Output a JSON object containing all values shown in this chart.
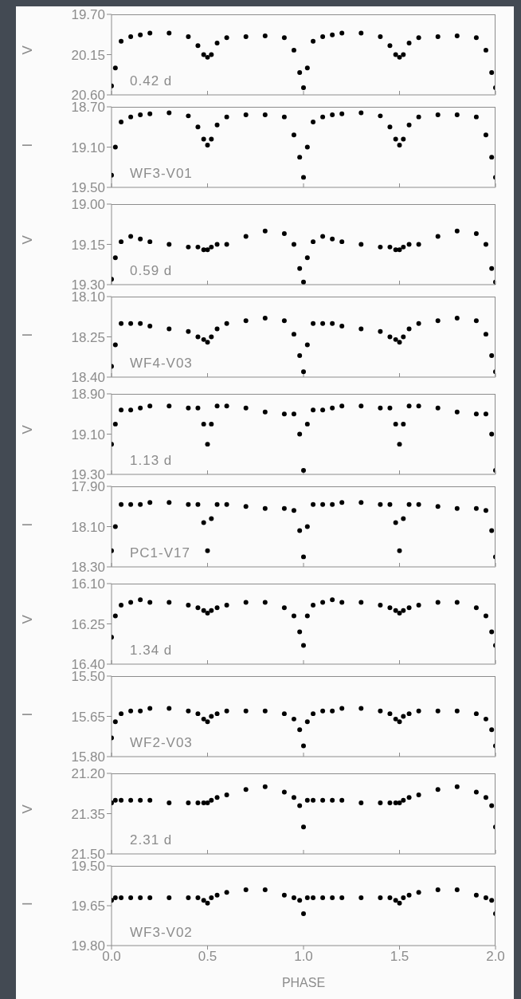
{
  "chart_data": [
    {
      "type": "scatter",
      "ylabel": "V",
      "annotations": [
        "0.42 d"
      ],
      "x": [
        0,
        0.02,
        0.05,
        0.1,
        0.15,
        0.2,
        0.3,
        0.4,
        0.45,
        0.48,
        0.5,
        0.52,
        0.55,
        0.6,
        0.7,
        0.8,
        0.9,
        0.95,
        0.98,
        1.0,
        1.02,
        1.05,
        1.1,
        1.15,
        1.2,
        1.3,
        1.4,
        1.45,
        1.48,
        1.5,
        1.52,
        1.55,
        1.6,
        1.7,
        1.8,
        1.9,
        1.95,
        1.98,
        2.0
      ],
      "values": [
        20.5,
        20.3,
        20.0,
        19.95,
        19.93,
        19.91,
        19.91,
        19.95,
        20.05,
        20.15,
        20.18,
        20.15,
        20.02,
        19.96,
        19.95,
        19.94,
        19.96,
        20.1,
        20.35,
        20.52,
        20.3,
        20.0,
        19.95,
        19.93,
        19.91,
        19.91,
        19.95,
        20.05,
        20.15,
        20.18,
        20.15,
        20.02,
        19.96,
        19.95,
        19.94,
        19.96,
        20.1,
        20.35,
        20.52
      ],
      "color": "#000000",
      "marker": "circle",
      "xlim": [
        0,
        2
      ],
      "xticks": [
        0,
        0.5,
        1,
        1.5,
        2
      ],
      "ylim": [
        20.6,
        19.7
      ],
      "yticks": [
        {
          "value": 19.7,
          "label": "19.70"
        },
        {
          "value": 20.15,
          "label": "20.15"
        },
        {
          "value": 20.6,
          "label": "20.60"
        }
      ],
      "tick_labels": "y"
    },
    {
      "type": "scatter",
      "ylabel": "I",
      "annotations": [
        "WF3-V01"
      ],
      "x": [
        0,
        0.02,
        0.05,
        0.1,
        0.15,
        0.2,
        0.3,
        0.4,
        0.45,
        0.48,
        0.5,
        0.52,
        0.55,
        0.6,
        0.7,
        0.8,
        0.9,
        0.95,
        0.98,
        1.0,
        1.02,
        1.05,
        1.1,
        1.15,
        1.2,
        1.3,
        1.4,
        1.45,
        1.48,
        1.5,
        1.52,
        1.55,
        1.6,
        1.7,
        1.8,
        1.9,
        1.95,
        1.98,
        2.0
      ],
      "values": [
        19.38,
        19.1,
        18.85,
        18.8,
        18.78,
        18.77,
        18.76,
        18.79,
        18.9,
        19.02,
        19.08,
        19.02,
        18.88,
        18.8,
        18.78,
        18.78,
        18.8,
        18.98,
        19.2,
        19.4,
        19.1,
        18.85,
        18.8,
        18.78,
        18.77,
        18.76,
        18.79,
        18.9,
        19.02,
        19.08,
        19.02,
        18.88,
        18.8,
        18.78,
        18.78,
        18.8,
        18.98,
        19.2,
        19.4
      ],
      "color": "#000000",
      "marker": "circle",
      "xlim": [
        0,
        2
      ],
      "xticks": [
        0,
        0.5,
        1,
        1.5,
        2
      ],
      "ylim": [
        19.5,
        18.7
      ],
      "yticks": [
        {
          "value": 18.7,
          "label": "18.70"
        },
        {
          "value": 19.1,
          "label": "19.10"
        },
        {
          "value": 19.5,
          "label": "19.50"
        }
      ],
      "tick_labels": "y"
    },
    {
      "type": "scatter",
      "ylabel": "V",
      "annotations": [
        "0.59 d"
      ],
      "x": [
        0,
        0.02,
        0.05,
        0.1,
        0.15,
        0.2,
        0.3,
        0.4,
        0.45,
        0.48,
        0.5,
        0.52,
        0.55,
        0.6,
        0.7,
        0.8,
        0.9,
        0.95,
        0.98,
        1.0,
        1.02,
        1.05,
        1.1,
        1.15,
        1.2,
        1.3,
        1.4,
        1.45,
        1.48,
        1.5,
        1.52,
        1.55,
        1.6,
        1.7,
        1.8,
        1.9,
        1.95,
        1.98,
        2.0
      ],
      "values": [
        19.28,
        19.2,
        19.14,
        19.12,
        19.13,
        19.14,
        19.15,
        19.16,
        19.16,
        19.17,
        19.17,
        19.16,
        19.15,
        19.15,
        19.12,
        19.1,
        19.11,
        19.15,
        19.24,
        19.29,
        19.2,
        19.14,
        19.12,
        19.13,
        19.14,
        19.15,
        19.16,
        19.16,
        19.17,
        19.17,
        19.16,
        19.15,
        19.15,
        19.12,
        19.1,
        19.11,
        19.15,
        19.24,
        19.29
      ],
      "color": "#000000",
      "marker": "circle",
      "xlim": [
        0,
        2
      ],
      "xticks": [
        0,
        0.5,
        1,
        1.5,
        2
      ],
      "ylim": [
        19.3,
        19.0
      ],
      "yticks": [
        {
          "value": 19.0,
          "label": "19.00"
        },
        {
          "value": 19.15,
          "label": "19.15"
        },
        {
          "value": 19.3,
          "label": "19.30"
        }
      ],
      "tick_labels": "y"
    },
    {
      "type": "scatter",
      "ylabel": "I",
      "annotations": [
        "WF4-V03"
      ],
      "x": [
        0,
        0.02,
        0.05,
        0.1,
        0.15,
        0.2,
        0.3,
        0.4,
        0.45,
        0.48,
        0.5,
        0.52,
        0.55,
        0.6,
        0.7,
        0.8,
        0.9,
        0.95,
        0.98,
        1.0,
        1.02,
        1.05,
        1.1,
        1.15,
        1.2,
        1.3,
        1.4,
        1.45,
        1.48,
        1.5,
        1.52,
        1.55,
        1.6,
        1.7,
        1.8,
        1.9,
        1.95,
        1.98,
        2.0
      ],
      "values": [
        18.36,
        18.28,
        18.2,
        18.2,
        18.2,
        18.21,
        18.22,
        18.23,
        18.25,
        18.26,
        18.27,
        18.25,
        18.22,
        18.2,
        18.19,
        18.18,
        18.19,
        18.24,
        18.32,
        18.38,
        18.28,
        18.2,
        18.2,
        18.2,
        18.21,
        18.22,
        18.23,
        18.25,
        18.26,
        18.27,
        18.25,
        18.22,
        18.2,
        18.19,
        18.18,
        18.19,
        18.24,
        18.32,
        18.38
      ],
      "color": "#000000",
      "marker": "circle",
      "xlim": [
        0,
        2
      ],
      "xticks": [
        0,
        0.5,
        1,
        1.5,
        2
      ],
      "ylim": [
        18.4,
        18.1
      ],
      "yticks": [
        {
          "value": 18.1,
          "label": "18.10"
        },
        {
          "value": 18.25,
          "label": "18.25"
        },
        {
          "value": 18.4,
          "label": "18.40"
        }
      ],
      "tick_labels": "y"
    },
    {
      "type": "scatter",
      "ylabel": "V",
      "annotations": [
        "1.13 d"
      ],
      "x": [
        0,
        0.02,
        0.05,
        0.1,
        0.15,
        0.2,
        0.3,
        0.4,
        0.45,
        0.48,
        0.5,
        0.52,
        0.55,
        0.6,
        0.7,
        0.8,
        0.9,
        0.95,
        0.98,
        1.0,
        1.02,
        1.05,
        1.1,
        1.15,
        1.2,
        1.3,
        1.4,
        1.45,
        1.48,
        1.5,
        1.52,
        1.55,
        1.6,
        1.7,
        1.8,
        1.9,
        1.95,
        1.98,
        2.0
      ],
      "values": [
        19.15,
        19.05,
        18.98,
        18.98,
        18.97,
        18.96,
        18.96,
        18.97,
        18.97,
        19.05,
        19.15,
        19.05,
        18.96,
        18.96,
        18.97,
        18.99,
        19.0,
        19.0,
        19.1,
        19.28,
        19.05,
        18.98,
        18.98,
        18.97,
        18.96,
        18.96,
        18.97,
        18.97,
        19.05,
        19.15,
        19.05,
        18.96,
        18.96,
        18.97,
        18.99,
        19.0,
        19.0,
        19.1,
        19.28
      ],
      "color": "#000000",
      "marker": "circle",
      "xlim": [
        0,
        2
      ],
      "xticks": [
        0,
        0.5,
        1,
        1.5,
        2
      ],
      "ylim": [
        19.3,
        18.9
      ],
      "yticks": [
        {
          "value": 18.9,
          "label": "18.90"
        },
        {
          "value": 19.1,
          "label": "19.10"
        },
        {
          "value": 19.3,
          "label": "19.30"
        }
      ],
      "tick_labels": "y"
    },
    {
      "type": "scatter",
      "ylabel": "I",
      "annotations": [
        "PC1-V17"
      ],
      "x": [
        0,
        0.02,
        0.05,
        0.1,
        0.15,
        0.2,
        0.3,
        0.4,
        0.45,
        0.48,
        0.5,
        0.52,
        0.55,
        0.6,
        0.7,
        0.8,
        0.9,
        0.95,
        0.98,
        1.0,
        1.02,
        1.05,
        1.1,
        1.15,
        1.2,
        1.3,
        1.4,
        1.45,
        1.48,
        1.5,
        1.52,
        1.55,
        1.6,
        1.7,
        1.8,
        1.9,
        1.95,
        1.98,
        2.0
      ],
      "values": [
        18.22,
        18.1,
        17.99,
        17.99,
        17.99,
        17.98,
        17.98,
        17.99,
        17.99,
        18.08,
        18.22,
        18.06,
        17.99,
        17.99,
        18.0,
        18.01,
        18.01,
        18.02,
        18.12,
        18.25,
        18.1,
        17.99,
        17.99,
        17.99,
        17.98,
        17.98,
        17.99,
        17.99,
        18.08,
        18.22,
        18.06,
        17.99,
        17.99,
        18.0,
        18.01,
        18.01,
        18.02,
        18.12,
        18.25
      ],
      "color": "#000000",
      "marker": "circle",
      "xlim": [
        0,
        2
      ],
      "xticks": [
        0,
        0.5,
        1,
        1.5,
        2
      ],
      "ylim": [
        18.3,
        17.9
      ],
      "yticks": [
        {
          "value": 17.9,
          "label": "17.90"
        },
        {
          "value": 18.1,
          "label": "18.10"
        },
        {
          "value": 18.3,
          "label": "18.30"
        }
      ],
      "tick_labels": "y"
    },
    {
      "type": "scatter",
      "ylabel": "V",
      "annotations": [
        "1.34 d"
      ],
      "x": [
        0,
        0.02,
        0.05,
        0.1,
        0.15,
        0.2,
        0.3,
        0.4,
        0.45,
        0.48,
        0.5,
        0.52,
        0.55,
        0.6,
        0.7,
        0.8,
        0.9,
        0.95,
        0.98,
        1.0,
        1.02,
        1.05,
        1.1,
        1.15,
        1.2,
        1.3,
        1.4,
        1.45,
        1.48,
        1.5,
        1.52,
        1.55,
        1.6,
        1.7,
        1.8,
        1.9,
        1.95,
        1.98,
        2.0
      ],
      "values": [
        16.3,
        16.22,
        16.18,
        16.17,
        16.16,
        16.17,
        16.17,
        16.18,
        16.19,
        16.2,
        16.21,
        16.2,
        16.19,
        16.18,
        16.17,
        16.17,
        16.19,
        16.22,
        16.28,
        16.33,
        16.22,
        16.18,
        16.17,
        16.16,
        16.17,
        16.17,
        16.18,
        16.19,
        16.2,
        16.21,
        16.2,
        16.19,
        16.18,
        16.17,
        16.17,
        16.19,
        16.22,
        16.28,
        16.33
      ],
      "color": "#000000",
      "marker": "circle",
      "xlim": [
        0,
        2
      ],
      "xticks": [
        0,
        0.5,
        1,
        1.5,
        2
      ],
      "ylim": [
        16.4,
        16.1
      ],
      "yticks": [
        {
          "value": 16.1,
          "label": "16.10"
        },
        {
          "value": 16.25,
          "label": "16.25"
        },
        {
          "value": 16.4,
          "label": "16.40"
        }
      ],
      "tick_labels": "y"
    },
    {
      "type": "scatter",
      "ylabel": "I",
      "annotations": [
        "WF2-V03"
      ],
      "x": [
        0,
        0.02,
        0.05,
        0.1,
        0.15,
        0.2,
        0.3,
        0.4,
        0.45,
        0.48,
        0.5,
        0.52,
        0.55,
        0.6,
        0.7,
        0.8,
        0.9,
        0.95,
        0.98,
        1.0,
        1.02,
        1.05,
        1.1,
        1.15,
        1.2,
        1.3,
        1.4,
        1.45,
        1.48,
        1.5,
        1.52,
        1.55,
        1.6,
        1.7,
        1.8,
        1.9,
        1.95,
        1.98,
        2.0
      ],
      "values": [
        15.73,
        15.67,
        15.64,
        15.63,
        15.63,
        15.62,
        15.62,
        15.63,
        15.64,
        15.66,
        15.67,
        15.65,
        15.64,
        15.63,
        15.63,
        15.63,
        15.64,
        15.66,
        15.7,
        15.76,
        15.67,
        15.64,
        15.63,
        15.63,
        15.62,
        15.62,
        15.63,
        15.64,
        15.66,
        15.67,
        15.65,
        15.64,
        15.63,
        15.63,
        15.63,
        15.64,
        15.66,
        15.7,
        15.76
      ],
      "color": "#000000",
      "marker": "circle",
      "xlim": [
        0,
        2
      ],
      "xticks": [
        0,
        0.5,
        1,
        1.5,
        2
      ],
      "ylim": [
        15.8,
        15.5
      ],
      "yticks": [
        {
          "value": 15.5,
          "label": "15.50"
        },
        {
          "value": 15.65,
          "label": "15.65"
        },
        {
          "value": 15.8,
          "label": "15.80"
        }
      ],
      "tick_labels": "y"
    },
    {
      "type": "scatter",
      "ylabel": "V",
      "annotations": [
        "2.31 d"
      ],
      "x": [
        0,
        0.02,
        0.05,
        0.1,
        0.15,
        0.2,
        0.3,
        0.4,
        0.45,
        0.48,
        0.5,
        0.52,
        0.55,
        0.6,
        0.7,
        0.8,
        0.9,
        0.95,
        0.98,
        1.0,
        1.02,
        1.05,
        1.1,
        1.15,
        1.2,
        1.3,
        1.4,
        1.45,
        1.48,
        1.5,
        1.52,
        1.55,
        1.6,
        1.7,
        1.8,
        1.9,
        1.95,
        1.98,
        2.0
      ],
      "values": [
        21.31,
        21.3,
        21.3,
        21.3,
        21.3,
        21.3,
        21.31,
        21.31,
        21.31,
        21.31,
        21.31,
        21.3,
        21.29,
        21.28,
        21.26,
        21.25,
        21.27,
        21.29,
        21.32,
        21.4,
        21.3,
        21.3,
        21.3,
        21.3,
        21.3,
        21.31,
        21.31,
        21.31,
        21.31,
        21.31,
        21.3,
        21.29,
        21.28,
        21.26,
        21.25,
        21.27,
        21.29,
        21.32,
        21.4
      ],
      "color": "#000000",
      "marker": "circle",
      "xlim": [
        0,
        2
      ],
      "xticks": [
        0,
        0.5,
        1,
        1.5,
        2
      ],
      "ylim": [
        21.5,
        21.2
      ],
      "yticks": [
        {
          "value": 21.2,
          "label": "21.20"
        },
        {
          "value": 21.35,
          "label": "21.35"
        },
        {
          "value": 21.5,
          "label": "21.50"
        }
      ],
      "tick_labels": "y"
    },
    {
      "type": "scatter",
      "ylabel": "I",
      "xlabel": "PHASE",
      "annotations": [
        "WF3-V02"
      ],
      "x": [
        0,
        0.02,
        0.05,
        0.1,
        0.15,
        0.2,
        0.3,
        0.4,
        0.45,
        0.48,
        0.5,
        0.52,
        0.55,
        0.6,
        0.7,
        0.8,
        0.9,
        0.95,
        0.98,
        1.0,
        1.02,
        1.05,
        1.1,
        1.15,
        1.2,
        1.3,
        1.4,
        1.45,
        1.48,
        1.5,
        1.52,
        1.55,
        1.6,
        1.7,
        1.8,
        1.9,
        1.95,
        1.98,
        2.0
      ],
      "values": [
        19.63,
        19.62,
        19.62,
        19.62,
        19.62,
        19.62,
        19.62,
        19.62,
        19.62,
        19.63,
        19.64,
        19.62,
        19.61,
        19.6,
        19.59,
        19.59,
        19.61,
        19.62,
        19.63,
        19.68,
        19.62,
        19.62,
        19.62,
        19.62,
        19.62,
        19.62,
        19.62,
        19.62,
        19.63,
        19.64,
        19.62,
        19.61,
        19.6,
        19.59,
        19.59,
        19.61,
        19.62,
        19.63,
        19.68
      ],
      "color": "#000000",
      "marker": "circle",
      "xlim": [
        0,
        2
      ],
      "xticks": [
        {
          "value": 0,
          "label": "0.0"
        },
        {
          "value": 0.5,
          "label": "0.5"
        },
        {
          "value": 1,
          "label": "1.0"
        },
        {
          "value": 1.5,
          "label": "1.5"
        },
        {
          "value": 2,
          "label": "2.0"
        }
      ],
      "ylim": [
        19.8,
        19.5
      ],
      "yticks": [
        {
          "value": 19.5,
          "label": "19.50"
        },
        {
          "value": 19.65,
          "label": "19.65"
        },
        {
          "value": 19.8,
          "label": "19.80"
        }
      ]
    }
  ]
}
